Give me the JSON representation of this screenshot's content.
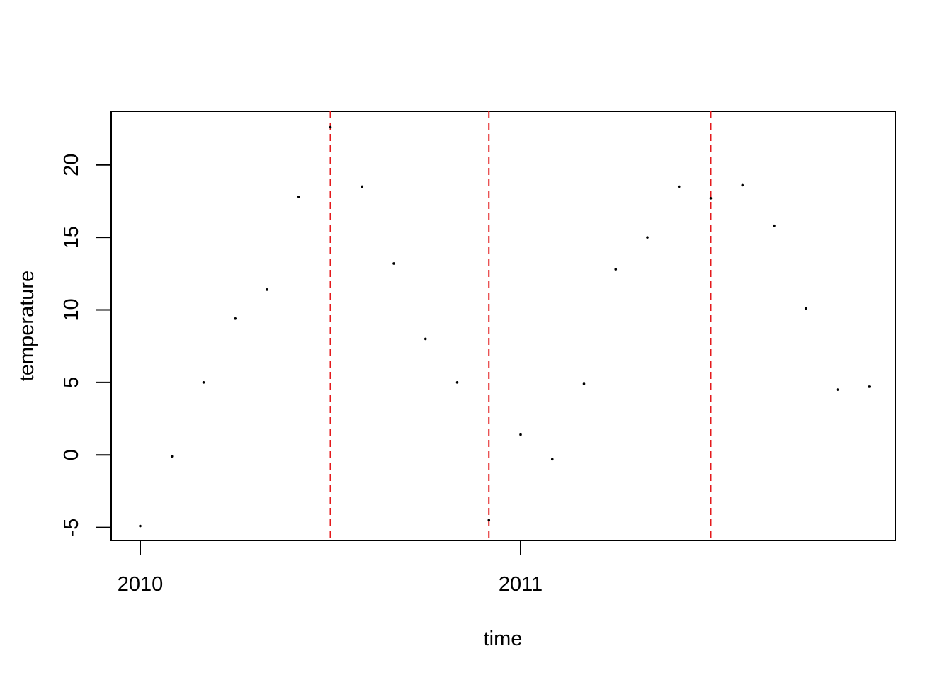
{
  "chart_data": {
    "type": "scatter",
    "xlabel": "time",
    "ylabel": "temperature",
    "x_tick_labels": [
      "2010",
      "2011"
    ],
    "y_tick_labels": [
      "-5",
      "0",
      "5",
      "10",
      "15",
      "20"
    ],
    "ylim": [
      -5.9,
      23.7
    ],
    "grid": false,
    "series": [
      {
        "x": [
          "2010-01",
          "2010-02",
          "2010-03",
          "2010-04",
          "2010-05",
          "2010-06",
          "2010-07",
          "2010-08",
          "2010-09",
          "2010-10",
          "2010-11",
          "2010-12",
          "2011-01",
          "2011-02",
          "2011-03",
          "2011-04",
          "2011-05",
          "2011-06",
          "2011-07",
          "2011-08",
          "2011-09",
          "2011-10",
          "2011-11",
          "2011-12"
        ],
        "y": [
          -4.9,
          -0.1,
          5.0,
          9.4,
          11.4,
          17.8,
          22.6,
          18.5,
          13.2,
          8.0,
          5.0,
          -4.5,
          1.4,
          -0.3,
          4.9,
          12.8,
          15.0,
          18.5,
          17.7,
          18.6,
          15.8,
          10.1,
          4.5,
          4.7
        ]
      }
    ],
    "vertical_lines": {
      "x": [
        "2010-07",
        "2010-12",
        "2011-07"
      ],
      "color": "#e41a1c",
      "style": "dashed"
    },
    "colors": {
      "points": "#000000",
      "lines": "#e41a1c"
    }
  }
}
